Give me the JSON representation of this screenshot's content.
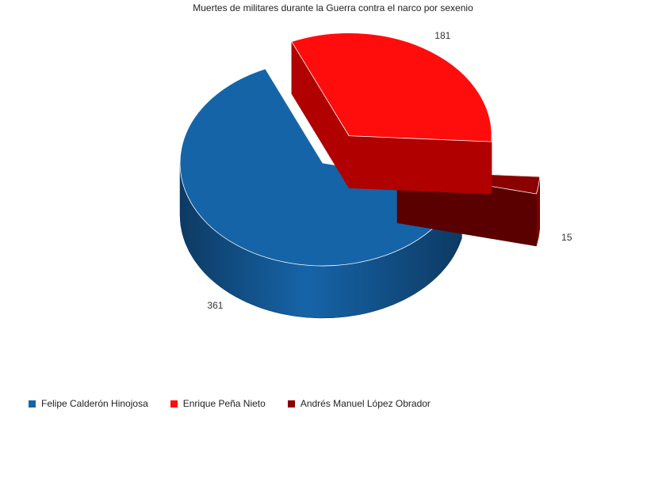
{
  "chart_data": {
    "type": "pie",
    "title": "Muertes de militares durante la Guerra contra el narco por sexenio",
    "categories": [
      "Felipe Calderón Hinojosa",
      "Enrique Peña Nieto",
      "Andrés Manuel López Obrador"
    ],
    "values": [
      361,
      181,
      15
    ],
    "labels": [
      "361",
      "181",
      "15"
    ],
    "colors": [
      "#1664a8",
      "#ff0d0d",
      "#8b0000"
    ],
    "side_colors": [
      "#0d3a63",
      "#b00000",
      "#5a0000"
    ],
    "legend_position": "bottom-left",
    "style": "3d-exploded"
  }
}
